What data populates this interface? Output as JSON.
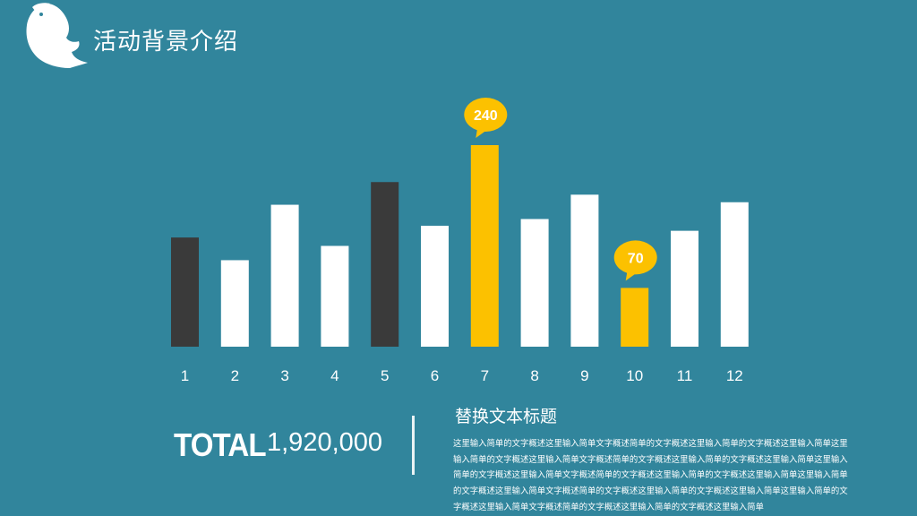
{
  "header": {
    "title": "活动背景介绍"
  },
  "chart_data": {
    "type": "bar",
    "categories": [
      "1",
      "2",
      "3",
      "4",
      "5",
      "6",
      "7",
      "8",
      "9",
      "10",
      "11",
      "12"
    ],
    "values": [
      130,
      103,
      169,
      120,
      196,
      144,
      240,
      152,
      181,
      70,
      138,
      172
    ],
    "colors": [
      "#3a3a3a",
      "#ffffff",
      "#ffffff",
      "#ffffff",
      "#3a3a3a",
      "#ffffff",
      "#fcc100",
      "#ffffff",
      "#ffffff",
      "#fcc100",
      "#ffffff",
      "#ffffff"
    ],
    "callouts": [
      {
        "category": "7",
        "label": "240"
      },
      {
        "category": "10",
        "label": "70"
      }
    ],
    "ylim": [
      0,
      240
    ],
    "title": "",
    "xlabel": "",
    "ylabel": "",
    "grid": false
  },
  "summary": {
    "total_label": "TOTAL",
    "total_value": "1,920,000",
    "subtitle": "替换文本标题",
    "description": "这里输入简单的文字概述这里输入简单文字概述简单的文字概述这里输入简单的文字概述这里输入简单这里输入简单的文字概述这里输入简单文字概述简单的文字概述这里输入简单的文字概述这里输入简单这里输入简单的文字概述这里输入简单文字概述简单的文字概述这里输入简单的文字概述这里输入简单这里输入简单的文字概述这里输入简单文字概述简单的文字概述这里输入简单的文字概述这里输入简单这里输入简单的文字概述这里输入简单文字概述简单的文字概述这里输入简单的文字概述这里输入简单"
  }
}
